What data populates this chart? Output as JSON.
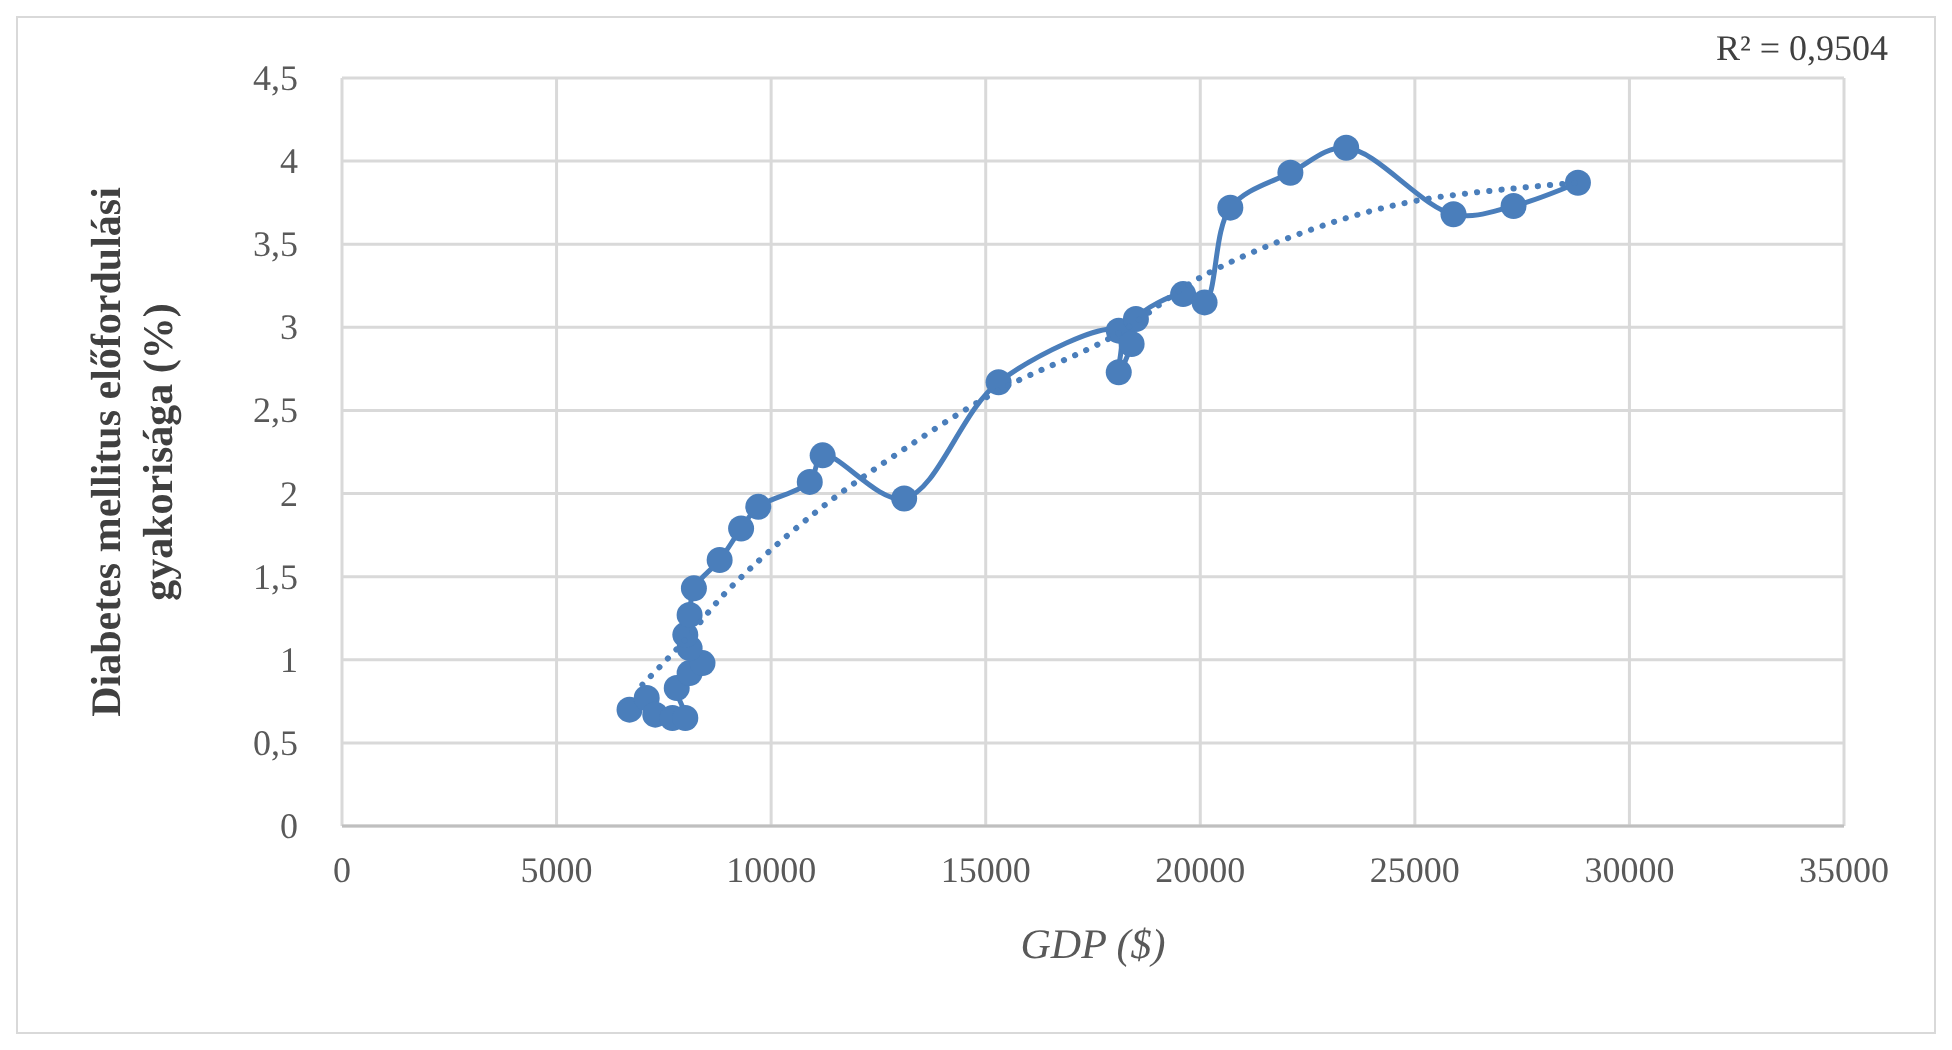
{
  "chart_data": {
    "type": "line",
    "xlabel": "GDP ($)",
    "ylabel": "Diabetes mellitus előfordulási gyakorisága (%)",
    "annotations": [
      "R² = 0,9504"
    ],
    "xlim": [
      0,
      35000
    ],
    "xticks": [
      0,
      5000,
      10000,
      15000,
      20000,
      25000,
      30000,
      35000
    ],
    "ylim": [
      0,
      4.5
    ],
    "yticks": [
      {
        "value": 0,
        "label": "0"
      },
      {
        "value": 0.5,
        "label": "0,5"
      },
      {
        "value": 1,
        "label": "1"
      },
      {
        "value": 1.5,
        "label": "1,5"
      },
      {
        "value": 2,
        "label": "2"
      },
      {
        "value": 2.5,
        "label": "2,5"
      },
      {
        "value": 3,
        "label": "3"
      },
      {
        "value": 3.5,
        "label": "3,5"
      },
      {
        "value": 4,
        "label": "4"
      },
      {
        "value": 4.5,
        "label": "4,5"
      }
    ],
    "grid": true,
    "series": [
      {
        "color": "#4a7ebb",
        "marker": "circle",
        "line_style": "solid",
        "x": [
          6700,
          7100,
          7300,
          7700,
          8000,
          7800,
          8100,
          8400,
          8100,
          8000,
          8100,
          8200,
          8800,
          9300,
          9700,
          10900,
          11200,
          13100,
          15300,
          18100,
          18100,
          18400,
          18500,
          19600,
          20100,
          20700,
          22100,
          23400,
          25900,
          27300,
          28800
        ],
        "values": [
          0.7,
          0.77,
          0.67,
          0.65,
          0.65,
          0.83,
          0.92,
          0.98,
          1.07,
          1.15,
          1.27,
          1.43,
          1.6,
          1.79,
          1.92,
          2.07,
          2.23,
          1.97,
          2.67,
          2.98,
          2.73,
          2.9,
          3.05,
          3.2,
          3.15,
          3.72,
          3.93,
          4.08,
          3.68,
          3.73,
          3.87
        ]
      },
      {
        "color": "#4a7ebb",
        "marker": "none",
        "line_style": "dotted",
        "x": [
          7000,
          8000,
          9000,
          11000,
          13000,
          15300,
          18000,
          20000,
          22500,
          25000,
          28800
        ],
        "values": [
          0.85,
          1.12,
          1.42,
          1.88,
          2.25,
          2.62,
          2.95,
          3.3,
          3.58,
          3.76,
          3.87
        ]
      }
    ]
  }
}
